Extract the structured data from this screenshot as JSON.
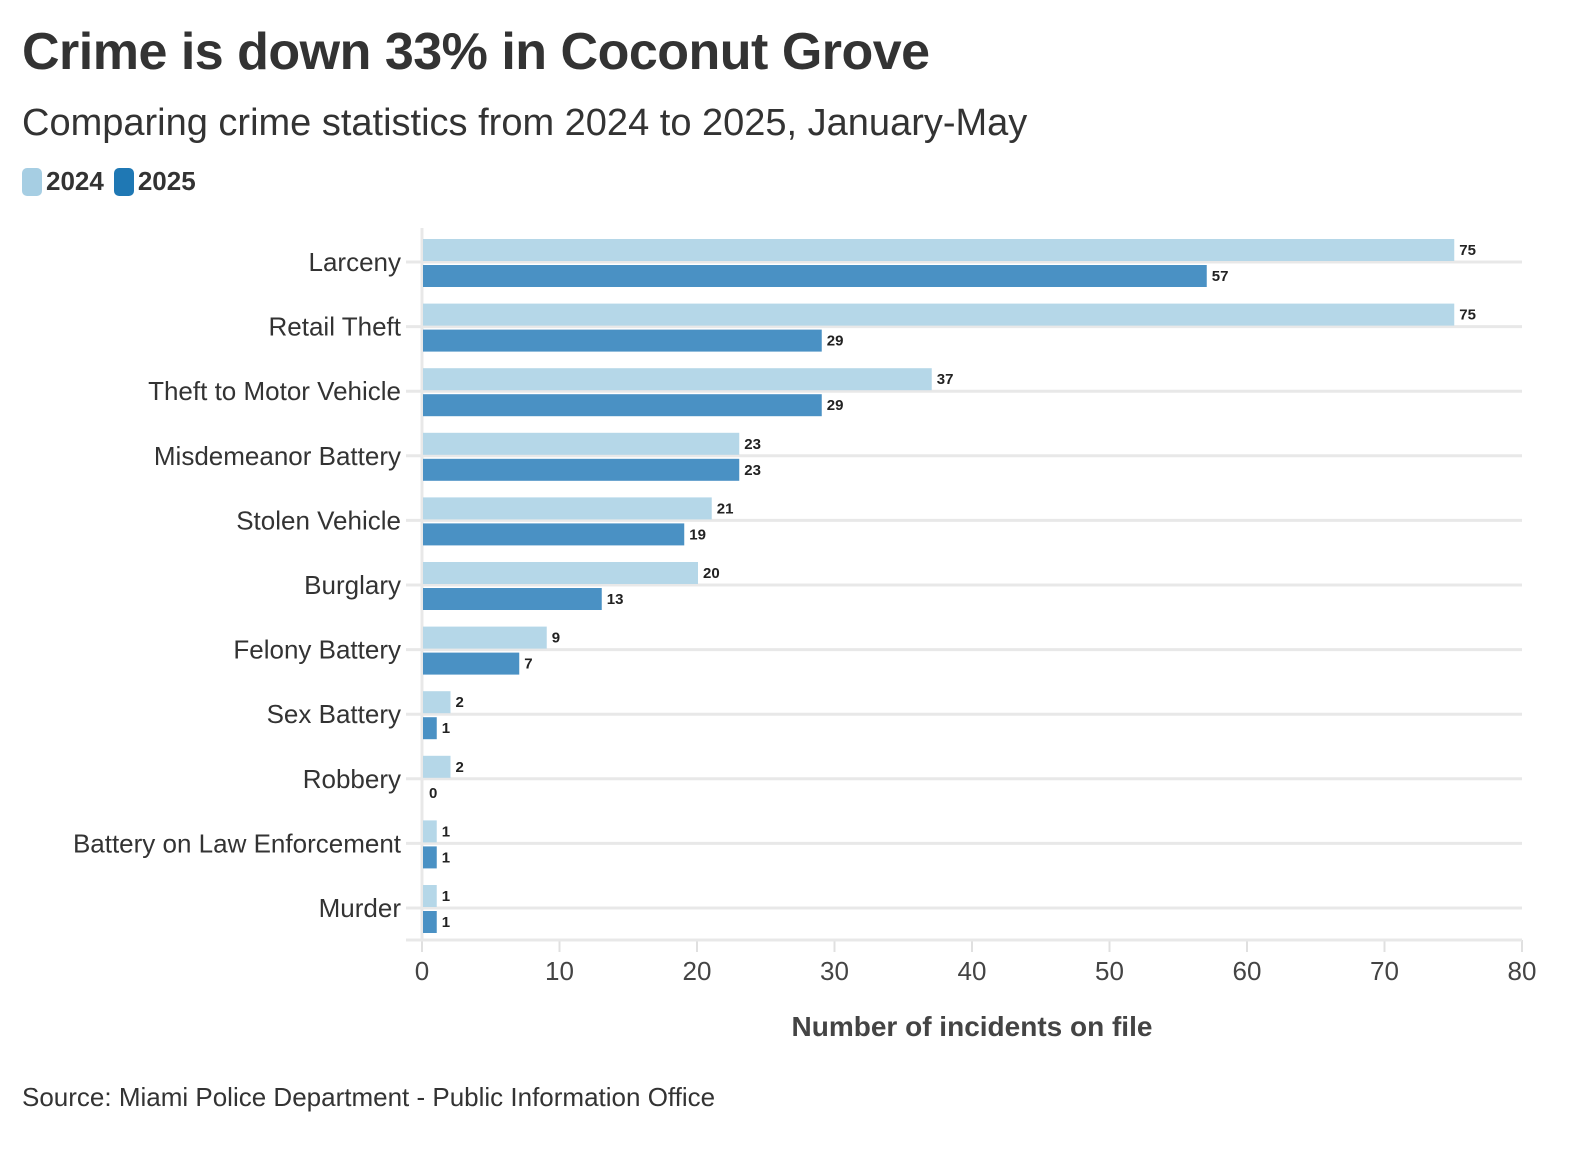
{
  "chart_data": {
    "type": "bar",
    "orientation": "horizontal",
    "title": "Crime is down 33% in Coconut Grove",
    "subtitle": "Comparing crime statistics from 2024 to 2025, January-May",
    "categories": [
      "Larceny",
      "Retail Theft",
      "Theft to Motor Vehicle",
      "Misdemeanor Battery",
      "Stolen Vehicle",
      "Burglary",
      "Felony Battery",
      "Sex Battery",
      "Robbery",
      "Battery on Law Enforcement",
      "Murder"
    ],
    "series": [
      {
        "name": "2024",
        "color": "#a6cee3",
        "values": [
          75,
          75,
          37,
          23,
          21,
          20,
          9,
          2,
          2,
          1,
          1
        ]
      },
      {
        "name": "2025",
        "color": "#1f78b4",
        "values": [
          57,
          29,
          29,
          23,
          19,
          13,
          7,
          1,
          0,
          1,
          1
        ]
      }
    ],
    "xlabel": "Number of incidents on file",
    "ylabel": "",
    "xlim": [
      0,
      80
    ],
    "xticks": [
      0,
      10,
      20,
      30,
      40,
      50,
      60,
      70,
      80
    ],
    "grid": true,
    "legend_position": "top-left",
    "source": "Source: Miami Police Department - Public Information Office"
  }
}
